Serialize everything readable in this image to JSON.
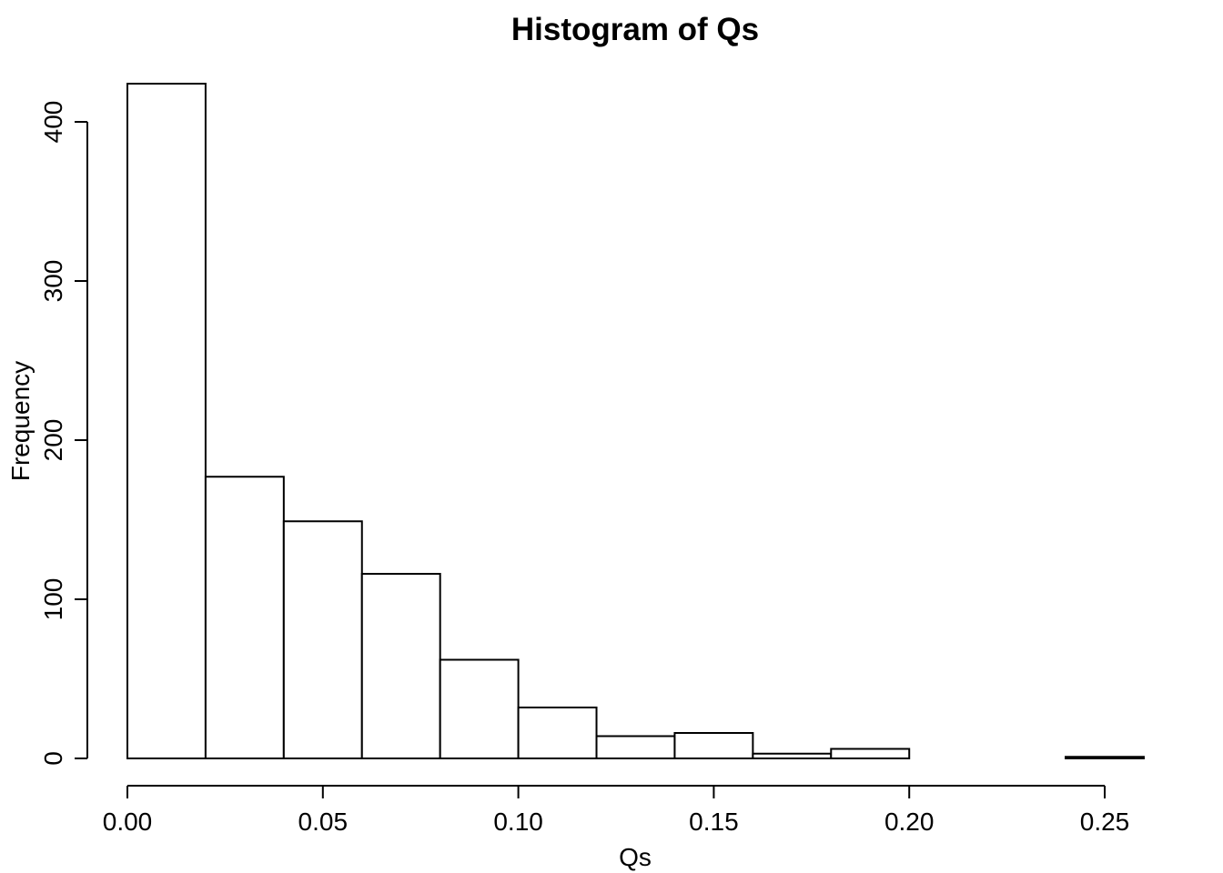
{
  "chart_data": {
    "type": "bar",
    "title": "Histogram of Qs",
    "xlabel": "Qs",
    "ylabel": "Frequency",
    "bin_edges": [
      0.0,
      0.02,
      0.04,
      0.06,
      0.08,
      0.1,
      0.12,
      0.14,
      0.16,
      0.18,
      0.2,
      0.22,
      0.24,
      0.26
    ],
    "values": [
      424,
      177,
      149,
      116,
      62,
      32,
      14,
      16,
      3,
      6,
      0,
      0,
      1
    ],
    "xlim": [
      0.0,
      0.26
    ],
    "ylim": [
      0,
      424
    ],
    "x_ticks": [
      0.0,
      0.05,
      0.1,
      0.15,
      0.2,
      0.25
    ],
    "x_tick_labels": [
      "0.00",
      "0.05",
      "0.10",
      "0.15",
      "0.20",
      "0.25"
    ],
    "y_ticks": [
      0,
      100,
      200,
      300,
      400
    ],
    "y_tick_labels": [
      "0",
      "100",
      "200",
      "300",
      "400"
    ],
    "grid": false,
    "colors": {
      "bar_fill": "#ffffff",
      "bar_stroke": "#000000"
    }
  }
}
